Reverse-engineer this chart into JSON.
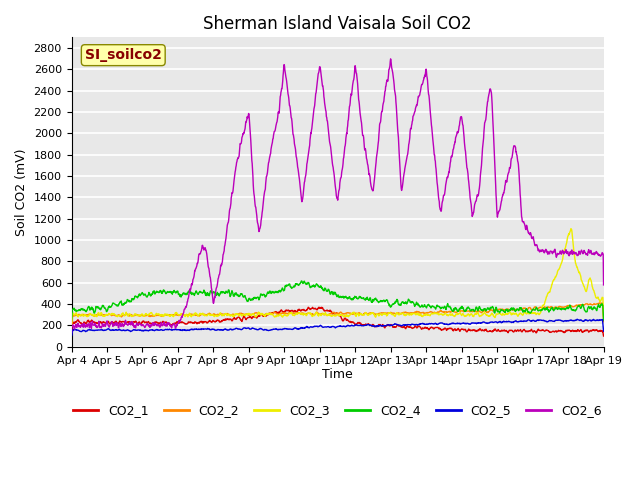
{
  "title": "Sherman Island Vaisala Soil CO2",
  "ylabel": "Soil CO2 (mV)",
  "xlabel": "Time",
  "watermark": "SI_soilco2",
  "ylim": [
    0,
    2900
  ],
  "yticks": [
    0,
    200,
    400,
    600,
    800,
    1000,
    1200,
    1400,
    1600,
    1800,
    2000,
    2200,
    2400,
    2600,
    2800
  ],
  "xtick_labels": [
    "Apr 4",
    "Apr 5",
    "Apr 6",
    "Apr 7",
    "Apr 8",
    "Apr 9",
    "Apr 10",
    "Apr 11",
    "Apr 12",
    "Apr 13",
    "Apr 14",
    "Apr 15",
    "Apr 16",
    "Apr 17",
    "Apr 18",
    "Apr 19"
  ],
  "series_colors": {
    "CO2_1": "#dd0000",
    "CO2_2": "#ff8800",
    "CO2_3": "#eeee00",
    "CO2_4": "#00cc00",
    "CO2_5": "#0000dd",
    "CO2_6": "#bb00bb"
  },
  "legend_labels": [
    "CO2_1",
    "CO2_2",
    "CO2_3",
    "CO2_4",
    "CO2_5",
    "CO2_6"
  ],
  "background_color": "#e8e8e8",
  "grid_color": "#ffffff",
  "watermark_bg": "#ffffaa",
  "watermark_fg": "#880000",
  "n_points": 1500
}
